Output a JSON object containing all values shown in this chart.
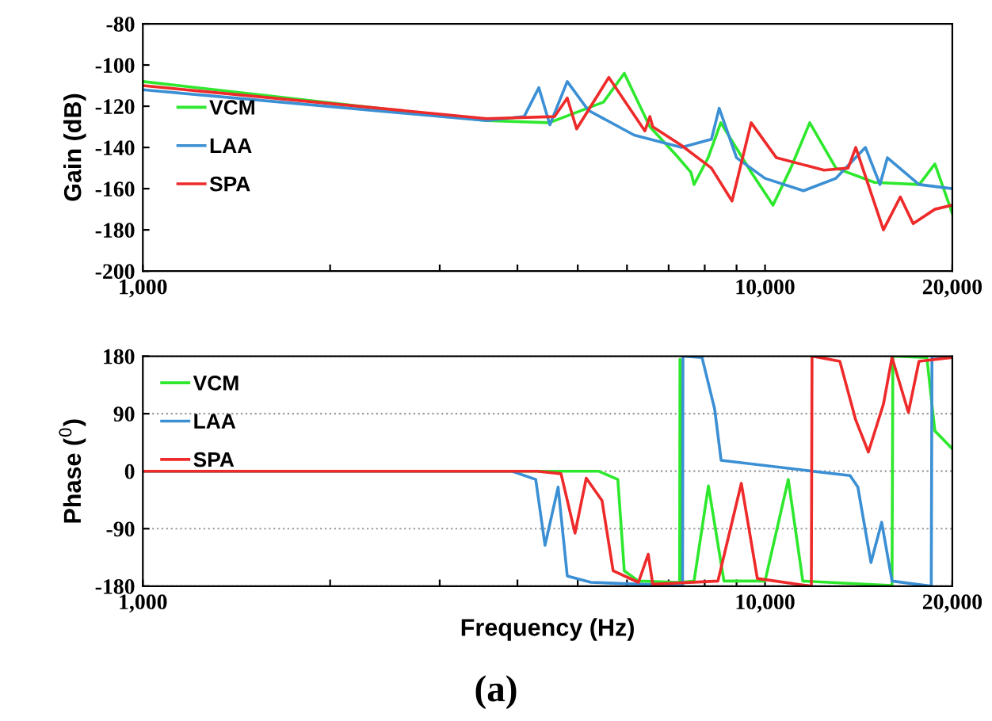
{
  "chart_data": [
    {
      "type": "line",
      "ylabel": "Gain (dB)",
      "log": "x",
      "xlim": [
        1000,
        20000
      ],
      "ylim": [
        -200,
        -80
      ],
      "xticks": [
        {
          "value": 1000,
          "label": "1,000"
        },
        {
          "value": 2000,
          "label": null
        },
        {
          "value": 3000,
          "label": null
        },
        {
          "value": 4000,
          "label": null
        },
        {
          "value": 5000,
          "label": null
        },
        {
          "value": 6000,
          "label": null
        },
        {
          "value": 7000,
          "label": null
        },
        {
          "value": 8000,
          "label": null
        },
        {
          "value": 9000,
          "label": null
        },
        {
          "value": 10000,
          "label": "10,000"
        },
        {
          "value": 20000,
          "label": "20,000"
        }
      ],
      "yticks": [
        -80,
        -100,
        -120,
        -140,
        -160,
        -180,
        -200
      ],
      "legend": "left",
      "series": [
        {
          "name": "VCM",
          "color": "#2ee82e",
          "x": [
            1000,
            3570,
            4500,
            5500,
            5940,
            6530,
            7210,
            7600,
            7690,
            8100,
            8490,
            9500,
            10300,
            11000,
            11800,
            13000,
            15000,
            17700,
            18750,
            20000
          ],
          "values": [
            -108,
            -127,
            -128,
            -118,
            -104,
            -130,
            -144,
            -152,
            -158,
            -145,
            -128,
            -152,
            -168,
            -150,
            -128,
            -150,
            -157,
            -158,
            -148,
            -172
          ]
        },
        {
          "name": "LAA",
          "color": "#3b8fd4",
          "x": [
            1000,
            3570,
            4100,
            4330,
            4510,
            4810,
            5200,
            6160,
            7340,
            8200,
            8440,
            9000,
            10000,
            11530,
            13000,
            14500,
            15300,
            15730,
            17680,
            20000
          ],
          "values": [
            -112,
            -127,
            -125,
            -111,
            -129,
            -108,
            -122,
            -134,
            -140,
            -136,
            -121,
            -145,
            -155,
            -161,
            -155,
            -140,
            -158,
            -145,
            -158,
            -160
          ]
        },
        {
          "name": "SPA",
          "color": "#ee2a2a",
          "x": [
            1000,
            3570,
            4590,
            4810,
            4980,
            5610,
            6410,
            6530,
            6600,
            7340,
            8200,
            8850,
            9500,
            10430,
            12440,
            13600,
            13990,
            15500,
            16500,
            17300,
            18750,
            20000
          ],
          "values": [
            -110,
            -126,
            -125,
            -116,
            -131,
            -106,
            -132,
            -125,
            -130,
            -139,
            -150,
            -166,
            -128,
            -145,
            -151,
            -150,
            -140,
            -180,
            -164,
            -177,
            -170,
            -168
          ]
        }
      ]
    },
    {
      "type": "line",
      "xlabel": "Frequency (Hz)",
      "ylabel": "Phase ($^{0}$)",
      "log": "x",
      "xlim": [
        1000,
        20000
      ],
      "ylim": [
        -180,
        180
      ],
      "xticks": [
        {
          "value": 1000,
          "label": "1,000"
        },
        {
          "value": 2000,
          "label": null
        },
        {
          "value": 3000,
          "label": null
        },
        {
          "value": 4000,
          "label": null
        },
        {
          "value": 5000,
          "label": null
        },
        {
          "value": 6000,
          "label": null
        },
        {
          "value": 7000,
          "label": null
        },
        {
          "value": 8000,
          "label": null
        },
        {
          "value": 9000,
          "label": null
        },
        {
          "value": 10000,
          "label": "10,000"
        },
        {
          "value": 20000,
          "label": "20,000"
        }
      ],
      "yticks": [
        -180,
        -90,
        0,
        90,
        180
      ],
      "grid": "y",
      "legend": "top left",
      "annotations": [
        "(a)"
      ],
      "series": [
        {
          "name": "VCM",
          "color": "#2ee82e",
          "x": [
            1000,
            5400,
            5800,
            5940,
            6260,
            7250,
            7290,
            7300,
            7340,
            7690,
            8110,
            8590,
            10000,
            10900,
            11500,
            16000,
            16050,
            18200,
            18750,
            20000
          ],
          "values": [
            0,
            0,
            -13,
            -156,
            -172,
            -174,
            -174,
            175,
            -174,
            -172,
            -23,
            -172,
            -172,
            -13,
            -172,
            -179,
            180,
            178,
            63,
            35
          ]
        },
        {
          "name": "LAA",
          "color": "#3b8fd4",
          "x": [
            1000,
            3920,
            4280,
            4430,
            4650,
            4810,
            5250,
            7210,
            7370,
            7380,
            7920,
            8300,
            8500,
            13700,
            14100,
            14800,
            15400,
            16000,
            18500,
            18550,
            20000
          ],
          "values": [
            0,
            0,
            -13,
            -116,
            -25,
            -164,
            -174,
            -179,
            -179,
            180,
            178,
            97,
            17,
            -7,
            -25,
            -143,
            -80,
            -172,
            -180,
            180,
            178
          ]
        },
        {
          "name": "SPA",
          "color": "#ee2a2a",
          "x": [
            1000,
            4300,
            4700,
            4950,
            5160,
            5470,
            5700,
            6260,
            6490,
            6600,
            8400,
            9160,
            9720,
            11870,
            11900,
            13190,
            13990,
            14660,
            15500,
            16000,
            17000,
            17680,
            20000
          ],
          "values": [
            0,
            0,
            -4,
            -97,
            -11,
            -46,
            -156,
            -174,
            -130,
            -177,
            -172,
            -19,
            -168,
            -180,
            180,
            172,
            80,
            30,
            105,
            178,
            92,
            172,
            178
          ]
        }
      ]
    }
  ]
}
